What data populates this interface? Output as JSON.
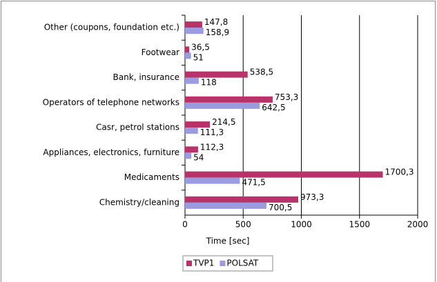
{
  "chart_data": {
    "type": "barh",
    "categories": [
      "Other (coupons, foundation etc.)",
      "Footwear",
      "Bank, insurance",
      "Operators of telephone networks",
      "Casr, petrol stations",
      "Appliances, electronics, furniture",
      "Medicaments",
      "Chemistry/cleaning"
    ],
    "series": [
      {
        "name": "TVP1",
        "color": "#b8336a",
        "values": [
          147.8,
          36.5,
          538.5,
          753.3,
          214.5,
          112.3,
          1700.3,
          973.3
        ],
        "value_labels": [
          "147,8",
          "36,5",
          "538,5",
          "753,3",
          "214,5",
          "112,3",
          "1700,3",
          "973,3"
        ]
      },
      {
        "name": "POLSAT",
        "color": "#9b9be0",
        "values": [
          158.9,
          51,
          118,
          642.5,
          111.3,
          54,
          471.5,
          700.5
        ],
        "value_labels": [
          "158,9",
          "51",
          "118",
          "642,5",
          "111,3",
          "54",
          "471,5",
          "700,5"
        ]
      }
    ],
    "xlabel": "Time [sec]",
    "xlim": [
      0,
      2000
    ],
    "xticks": [
      0,
      500,
      1000,
      1500,
      2000
    ],
    "grid": true,
    "legend": "bottom"
  }
}
